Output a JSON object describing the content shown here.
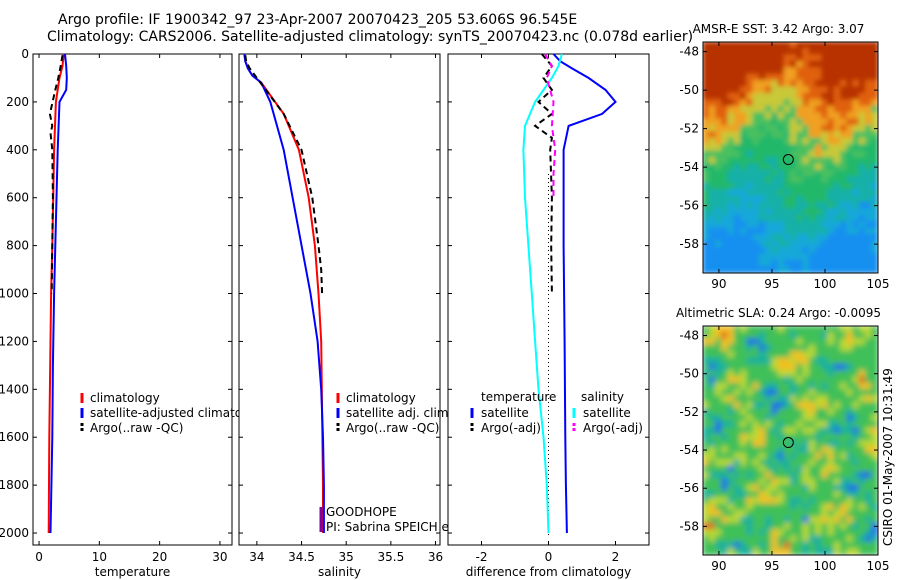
{
  "title": {
    "line1": "Argo profile: IF 1900342_97 23-Apr-2007 20070423_205 53.606S 96.545E",
    "line2": "Climatology: CARS2006. Satellite-adjusted climatology: synTS_20070423.nc (0.078d earlier)"
  },
  "colors": {
    "climatology": "#ff0000",
    "satellite": "#0000ff",
    "argo": "#000000",
    "satellite_salinity": "#00ffff",
    "argo_salinity": "#ff00ff"
  },
  "chart_data": [
    {
      "type": "line",
      "xlabel": "temperature",
      "ylabel": "",
      "xlim": [
        -1,
        32
      ],
      "ylim": [
        2050,
        0
      ],
      "xticks": [
        0,
        10,
        20,
        30
      ],
      "yticks": [
        0,
        200,
        400,
        600,
        800,
        1000,
        1200,
        1400,
        1600,
        1800,
        2000
      ],
      "legend_position": "lower-left",
      "legend": [
        "climatology",
        "satellite-adjusted climatolog",
        "Argo(..raw -QC)"
      ],
      "series": [
        {
          "name": "climatology",
          "color": "#ff0000",
          "style": "solid",
          "x": [
            4.1,
            3.9,
            3.4,
            2.8,
            2.5,
            2.35,
            2.2,
            2.0,
            1.85,
            1.7,
            1.6
          ],
          "y": [
            0,
            50,
            100,
            200,
            400,
            600,
            800,
            1000,
            1300,
            1600,
            2000
          ]
        },
        {
          "name": "satellite-adjusted climatolog",
          "color": "#0000ff",
          "style": "solid",
          "x": [
            4.3,
            4.5,
            4.6,
            4.5,
            3.4,
            3.1,
            2.9,
            2.7,
            2.5,
            2.3,
            2.2,
            1.9
          ],
          "y": [
            0,
            50,
            100,
            150,
            200,
            400,
            600,
            800,
            1000,
            1300,
            1600,
            2000
          ]
        },
        {
          "name": "Argo(..raw -QC)",
          "color": "#000000",
          "style": "dashed",
          "x": [
            3.9,
            3.6,
            3.2,
            2.7,
            1.8,
            2.2,
            1.9,
            2.2,
            2.3,
            2.1
          ],
          "y": [
            5,
            50,
            100,
            150,
            250,
            300,
            330,
            400,
            600,
            1000
          ]
        }
      ]
    },
    {
      "type": "line",
      "xlabel": "salinity",
      "ylabel": "",
      "xlim": [
        33.8,
        36.05
      ],
      "ylim": [
        2050,
        0
      ],
      "xticks": [
        34,
        34.5,
        35,
        35.5,
        36
      ],
      "yticks": [
        0,
        200,
        400,
        600,
        800,
        1000,
        1200,
        1400,
        1600,
        1800,
        2000
      ],
      "legend_position": "lower-right",
      "legend": [
        "climatology",
        "satellite adj. clim.",
        "Argo(..raw -QC)"
      ],
      "annotations": [
        "GOODHOPE",
        "PI: Sabrina SPEICH et Michel ARHAN"
      ],
      "series": [
        {
          "name": "climatology",
          "color": "#ff0000",
          "style": "solid",
          "x": [
            33.86,
            33.87,
            33.9,
            33.95,
            34.05,
            34.3,
            34.47,
            34.58,
            34.65,
            34.69,
            34.72,
            34.73,
            34.74,
            34.74
          ],
          "y": [
            0,
            30,
            60,
            90,
            120,
            250,
            400,
            600,
            800,
            1000,
            1200,
            1500,
            1800,
            2000
          ]
        },
        {
          "name": "satellite adj. clim.",
          "color": "#0000ff",
          "style": "solid",
          "x": [
            33.86,
            33.87,
            33.9,
            33.95,
            34.05,
            34.15,
            34.3,
            34.45,
            34.6,
            34.68,
            34.72,
            34.74,
            34.75,
            34.75
          ],
          "y": [
            0,
            30,
            60,
            90,
            120,
            200,
            400,
            700,
            1000,
            1200,
            1400,
            1600,
            1800,
            2000
          ]
        },
        {
          "name": "Argo(..raw -QC)",
          "color": "#000000",
          "style": "dashed",
          "x": [
            33.87,
            33.88,
            33.92,
            34.0,
            34.1,
            34.3,
            34.5,
            34.62,
            34.69,
            34.72,
            34.73
          ],
          "y": [
            5,
            30,
            60,
            100,
            150,
            250,
            400,
            600,
            800,
            900,
            1000
          ]
        }
      ]
    },
    {
      "type": "line",
      "xlabel": "difference from climatology",
      "ylabel": "",
      "xlim": [
        -3,
        3
      ],
      "ylim": [
        2050,
        0
      ],
      "xticks": [
        -2,
        0,
        2
      ],
      "yticks": [
        0,
        200,
        400,
        600,
        800,
        1000,
        1200,
        1400,
        1600,
        1800,
        2000
      ],
      "legend_position": "lower",
      "legend_groups": [
        "temperature",
        "salinity"
      ],
      "legend": [
        "satellite",
        "Argo(-adj)",
        "satellite",
        "Argo(-adj)"
      ],
      "series": [
        {
          "name": "satellite",
          "group": "temperature",
          "color": "#0000ff",
          "style": "solid",
          "x": [
            0.15,
            0.35,
            0.7,
            1.2,
            1.7,
            2.0,
            1.6,
            0.6,
            0.45,
            0.45,
            0.48,
            0.5,
            0.52,
            0.55
          ],
          "y": [
            0,
            30,
            60,
            100,
            150,
            200,
            250,
            300,
            400,
            800,
            1200,
            1600,
            1800,
            2000
          ]
        },
        {
          "name": "Argo(-adj)",
          "group": "temperature",
          "color": "#000000",
          "style": "dashed",
          "x": [
            -0.2,
            0.1,
            -0.15,
            0.1,
            -0.3,
            0.1,
            -0.4,
            0.1,
            0.05,
            0.1,
            0.08,
            0.1
          ],
          "y": [
            0,
            50,
            100,
            150,
            200,
            250,
            300,
            350,
            400,
            600,
            800,
            1000
          ]
        },
        {
          "name": "satellite",
          "group": "salinity",
          "color": "#00ffff",
          "style": "solid",
          "x": [
            0.4,
            0.3,
            0.1,
            -0.4,
            -0.7,
            -0.75,
            -0.7,
            -0.6,
            -0.5,
            -0.4,
            -0.3,
            -0.15,
            -0.05,
            0.0
          ],
          "y": [
            0,
            50,
            100,
            200,
            300,
            400,
            600,
            800,
            1000,
            1200,
            1400,
            1600,
            1800,
            2000
          ]
        },
        {
          "name": "Argo(-adj)",
          "group": "salinity",
          "color": "#ff00ff",
          "style": "dashed",
          "x": [
            -0.1,
            0.1,
            -0.05,
            0.15,
            0.1,
            0.2,
            0.15,
            0.15
          ],
          "y": [
            0,
            50,
            100,
            200,
            300,
            400,
            500,
            600
          ]
        }
      ],
      "reference_line": {
        "x": 0,
        "style": "dotted"
      }
    },
    {
      "type": "heatmap",
      "title": "AMSR-E SST: 3.42 Argo: 3.07",
      "xlim": [
        88.5,
        105
      ],
      "ylim": [
        -59.5,
        -47.5
      ],
      "xticks": [
        90,
        95,
        100,
        105
      ],
      "yticks": [
        -48,
        -50,
        -52,
        -54,
        -56,
        -58
      ],
      "marker": {
        "x": 96.545,
        "y": -53.606
      }
    },
    {
      "type": "heatmap",
      "title": "Altimetric SLA: 0.24 Argo: -0.0095",
      "xlim": [
        88.5,
        105
      ],
      "ylim": [
        -59.5,
        -47.5
      ],
      "xticks": [
        90,
        95,
        100,
        105
      ],
      "yticks": [
        -48,
        -50,
        -52,
        -54,
        -56,
        -58
      ],
      "marker": {
        "x": 96.545,
        "y": -53.606
      }
    }
  ],
  "footer_stamp": "CSIRO 01-May-2007 10:31:49"
}
